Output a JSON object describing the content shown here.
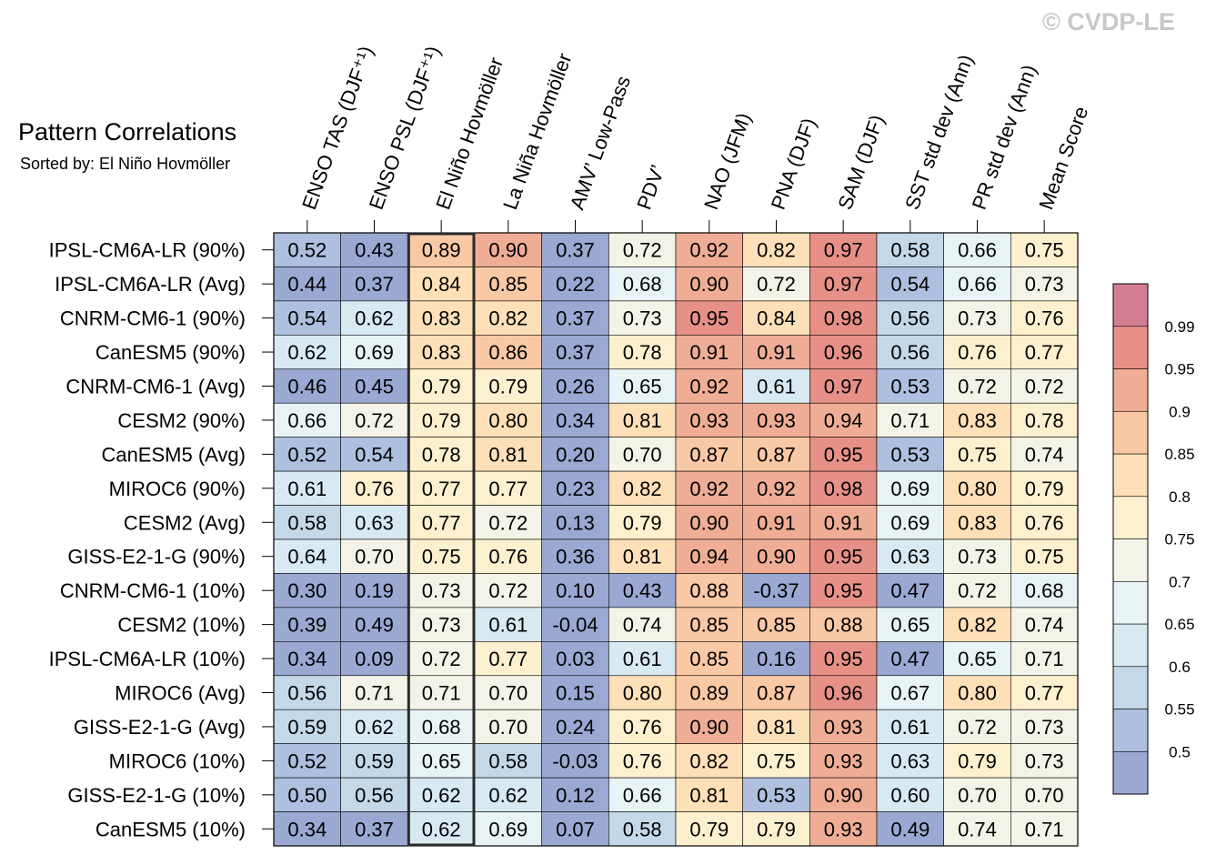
{
  "chart_data": {
    "type": "heatmap",
    "title": "Pattern Correlations",
    "subtitle": "Sorted by: El Niño Hovmöller",
    "copyright": "© CVDP-LE",
    "columns": [
      "ENSO TAS (DJF⁺¹)",
      "ENSO PSL (DJF⁺¹)",
      "El Niño Hovmöller",
      "La Niña Hovmöller",
      "AMV’ Low-Pass",
      "PDV’",
      "NAO (JFM)",
      "PNA (DJF)",
      "SAM (DJF)",
      "SST std dev (Ann)",
      "PR std dev (Ann)",
      "Mean Score"
    ],
    "rows": [
      "IPSL-CM6A-LR (90%)",
      "IPSL-CM6A-LR (Avg)",
      "CNRM-CM6-1 (90%)",
      "CanESM5 (90%)",
      "CNRM-CM6-1 (Avg)",
      "CESM2 (90%)",
      "CanESM5 (Avg)",
      "MIROC6 (90%)",
      "CESM2 (Avg)",
      "GISS-E2-1-G (90%)",
      "CNRM-CM6-1 (10%)",
      "CESM2 (10%)",
      "IPSL-CM6A-LR (10%)",
      "MIROC6 (Avg)",
      "GISS-E2-1-G (Avg)",
      "MIROC6 (10%)",
      "GISS-E2-1-G (10%)",
      "CanESM5 (10%)"
    ],
    "values": [
      [
        "0.52",
        "0.43",
        "0.89",
        "0.90",
        "0.37",
        "0.72",
        "0.92",
        "0.82",
        "0.97",
        "0.58",
        "0.66",
        "0.75"
      ],
      [
        "0.44",
        "0.37",
        "0.84",
        "0.85",
        "0.22",
        "0.68",
        "0.90",
        "0.72",
        "0.97",
        "0.54",
        "0.66",
        "0.73"
      ],
      [
        "0.54",
        "0.62",
        "0.83",
        "0.82",
        "0.37",
        "0.73",
        "0.95",
        "0.84",
        "0.98",
        "0.56",
        "0.73",
        "0.76"
      ],
      [
        "0.62",
        "0.69",
        "0.83",
        "0.86",
        "0.37",
        "0.78",
        "0.91",
        "0.91",
        "0.96",
        "0.56",
        "0.76",
        "0.77"
      ],
      [
        "0.46",
        "0.45",
        "0.79",
        "0.79",
        "0.26",
        "0.65",
        "0.92",
        "0.61",
        "0.97",
        "0.53",
        "0.72",
        "0.72"
      ],
      [
        "0.66",
        "0.72",
        "0.79",
        "0.80",
        "0.34",
        "0.81",
        "0.93",
        "0.93",
        "0.94",
        "0.71",
        "0.83",
        "0.78"
      ],
      [
        "0.52",
        "0.54",
        "0.78",
        "0.81",
        "0.20",
        "0.70",
        "0.87",
        "0.87",
        "0.95",
        "0.53",
        "0.75",
        "0.74"
      ],
      [
        "0.61",
        "0.76",
        "0.77",
        "0.77",
        "0.23",
        "0.82",
        "0.92",
        "0.92",
        "0.98",
        "0.69",
        "0.80",
        "0.79"
      ],
      [
        "0.58",
        "0.63",
        "0.77",
        "0.72",
        "0.13",
        "0.79",
        "0.90",
        "0.91",
        "0.91",
        "0.69",
        "0.83",
        "0.76"
      ],
      [
        "0.64",
        "0.70",
        "0.75",
        "0.76",
        "0.36",
        "0.81",
        "0.94",
        "0.90",
        "0.95",
        "0.63",
        "0.73",
        "0.75"
      ],
      [
        "0.30",
        "0.19",
        "0.73",
        "0.72",
        "0.10",
        "0.43",
        "0.88",
        "-0.37",
        "0.95",
        "0.47",
        "0.72",
        "0.68"
      ],
      [
        "0.39",
        "0.49",
        "0.73",
        "0.61",
        "-0.04",
        "0.74",
        "0.85",
        "0.85",
        "0.88",
        "0.65",
        "0.82",
        "0.74"
      ],
      [
        "0.34",
        "0.09",
        "0.72",
        "0.77",
        "0.03",
        "0.61",
        "0.85",
        "0.16",
        "0.95",
        "0.47",
        "0.65",
        "0.71"
      ],
      [
        "0.56",
        "0.71",
        "0.71",
        "0.70",
        "0.15",
        "0.80",
        "0.89",
        "0.87",
        "0.96",
        "0.67",
        "0.80",
        "0.77"
      ],
      [
        "0.59",
        "0.62",
        "0.68",
        "0.70",
        "0.24",
        "0.76",
        "0.90",
        "0.81",
        "0.93",
        "0.61",
        "0.72",
        "0.73"
      ],
      [
        "0.52",
        "0.59",
        "0.65",
        "0.58",
        "-0.03",
        "0.76",
        "0.82",
        "0.75",
        "0.93",
        "0.63",
        "0.79",
        "0.73"
      ],
      [
        "0.50",
        "0.56",
        "0.62",
        "0.62",
        "0.12",
        "0.66",
        "0.81",
        "0.53",
        "0.90",
        "0.60",
        "0.70",
        "0.70"
      ],
      [
        "0.34",
        "0.37",
        "0.62",
        "0.69",
        "0.07",
        "0.58",
        "0.79",
        "0.79",
        "0.93",
        "0.49",
        "0.74",
        "0.71"
      ]
    ],
    "highlight_column": "El Niño Hovmöller",
    "colorbar": {
      "levels": [
        0.5,
        0.55,
        0.6,
        0.65,
        0.7,
        0.75,
        0.8,
        0.85,
        0.9,
        0.95,
        0.99
      ],
      "tick_labels": [
        "0.5",
        "0.55",
        "0.6",
        "0.65",
        "0.7",
        "0.75",
        "0.8",
        "0.85",
        "0.9",
        "0.95",
        "0.99"
      ],
      "colors": [
        "#9aa8d2",
        "#aebfdf",
        "#c4d8e8",
        "#d8e9f1",
        "#e8f3f6",
        "#f3f4e7",
        "#fdf0cf",
        "#fde0b7",
        "#f9c8a4",
        "#f0ad96",
        "#e79088",
        "#d27e92"
      ]
    }
  }
}
